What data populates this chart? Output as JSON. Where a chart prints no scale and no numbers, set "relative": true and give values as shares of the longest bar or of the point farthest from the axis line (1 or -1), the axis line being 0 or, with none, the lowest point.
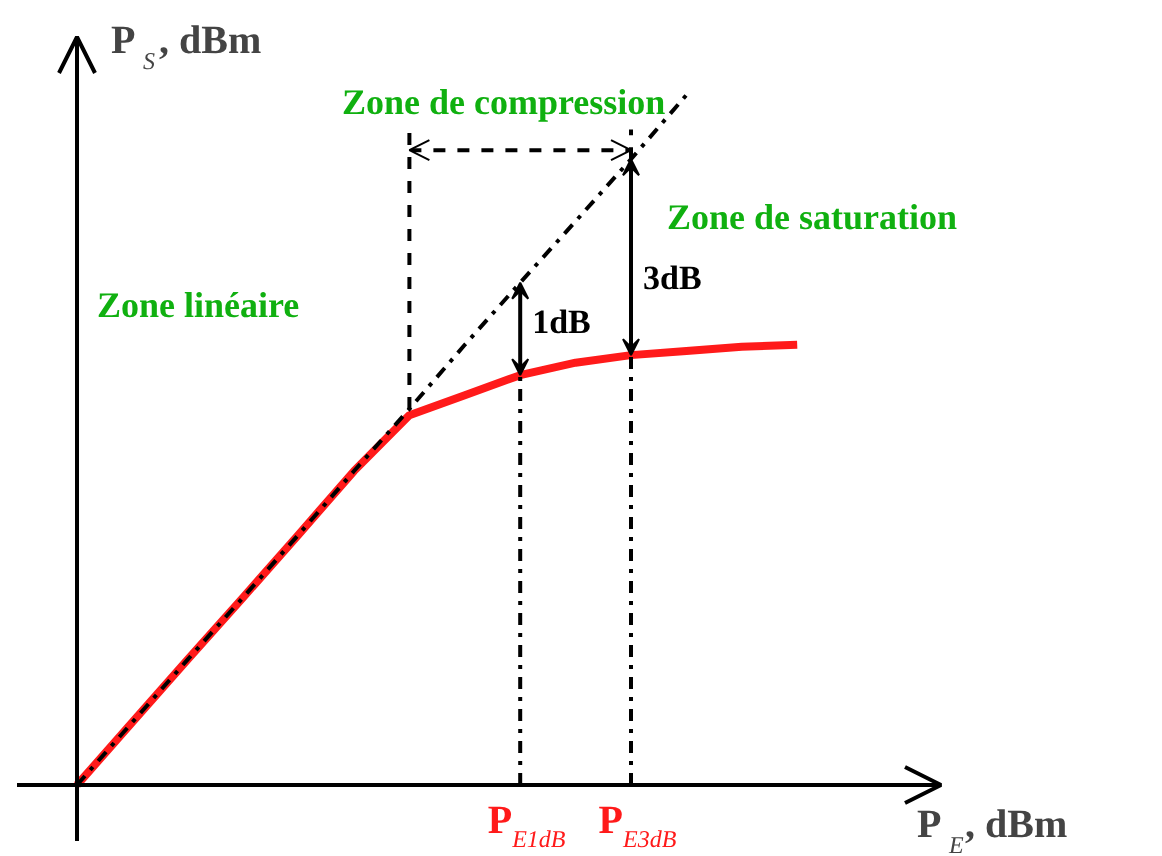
{
  "chart_data": {
    "type": "line",
    "relative": true,
    "xlabel": "P$_{E}$, dBm",
    "ylabel": "P$_{S}$, dBm",
    "categories": [
      null,
      null,
      null,
      null,
      null,
      null,
      null,
      null,
      "P$_{E1dB}$",
      null,
      "P$_{E3dB}$",
      null,
      null,
      null
    ],
    "series": [
      {
        "color": "#ff1a1a",
        "line_style": "solid",
        "values": [
          0,
          0.091,
          0.182,
          0.272,
          0.363,
          0.455,
          0.536,
          0.565,
          0.594,
          0.612,
          0.623,
          0.629,
          0.635,
          0.638
        ]
      },
      {
        "color": "#000000",
        "line_style": "dashdot",
        "values": [
          0,
          0.091,
          0.182,
          0.272,
          0.363,
          0.455,
          0.545,
          0.638,
          0.728,
          0.817,
          0.907,
          1.0,
          null,
          null
        ]
      }
    ],
    "annotations": [
      "Zone linéaire",
      "Zone de compression",
      "Zone de saturation",
      "1dB",
      "3dB"
    ],
    "marker": "none"
  }
}
